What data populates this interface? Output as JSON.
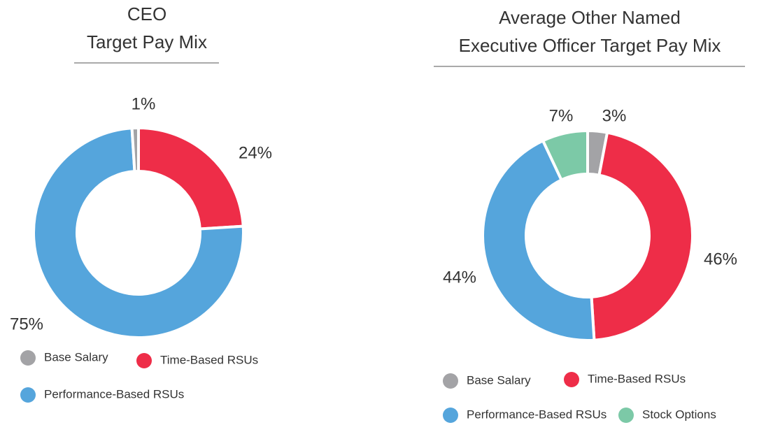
{
  "chart_data": [
    {
      "type": "donut",
      "title": [
        "CEO",
        "Target Pay Mix"
      ],
      "categories": [
        "Base Salary",
        "Time-Based RSUs",
        "Performance-Based RSUs"
      ],
      "values": [
        1,
        24,
        75
      ],
      "value_labels": [
        "1%",
        "24%",
        "75%"
      ],
      "colors": [
        "#a3a3a6",
        "#ee2d48",
        "#55a5dc"
      ]
    },
    {
      "type": "donut",
      "title": [
        "Average Other Named",
        "Executive Officer Target Pay Mix"
      ],
      "categories": [
        "Base Salary",
        "Time-Based RSUs",
        "Performance-Based RSUs",
        "Stock Options"
      ],
      "values": [
        3,
        46,
        44,
        7
      ],
      "value_labels": [
        "3%",
        "46%",
        "44%",
        "7%"
      ],
      "colors": [
        "#a3a3a6",
        "#ee2d48",
        "#55a5dc",
        "#7cc9a7"
      ]
    }
  ]
}
